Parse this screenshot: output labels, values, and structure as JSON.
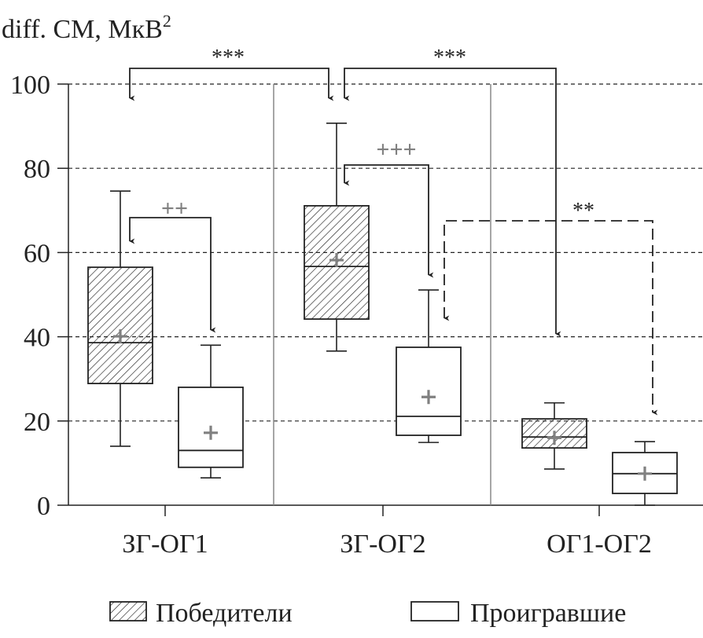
{
  "chart_data": {
    "type": "box",
    "ylabel": "diff. СМ, МкВ",
    "ylabel_sup": "2",
    "ylim": [
      0,
      100
    ],
    "yticks": [
      "0",
      "20",
      "40",
      "60",
      "80",
      "100"
    ],
    "grid": "dashed horizontal at 20,40,60,80,100",
    "categories": [
      "ЗГ-ОГ1",
      "ЗГ-ОГ2",
      "ОГ1-ОГ2"
    ],
    "legend_position": "bottom",
    "series": [
      {
        "name": "Победители",
        "style": "hatched",
        "boxes": [
          {
            "min": 14,
            "q1": 28.9,
            "median": 38.6,
            "q3": 56.5,
            "max": 74.6,
            "mean": 40.1
          },
          {
            "min": 36.6,
            "q1": 44.2,
            "median": 56.7,
            "q3": 71.1,
            "max": 90.7,
            "mean": 58.2
          },
          {
            "min": 8.6,
            "q1": 13.6,
            "median": 16.2,
            "q3": 20.5,
            "max": 24.3,
            "mean": 16
          }
        ]
      },
      {
        "name": "Проигравшие",
        "style": "open",
        "boxes": [
          {
            "min": 6.5,
            "q1": 9,
            "median": 13,
            "q3": 28,
            "max": 38,
            "mean": 17.2
          },
          {
            "min": 14.9,
            "q1": 16.6,
            "median": 21.1,
            "q3": 37.5,
            "max": 51.1,
            "mean": 25.7
          },
          {
            "min": 0,
            "q1": 2.8,
            "median": 7.5,
            "q3": 12.5,
            "max": 15.1,
            "mean": 7.5
          }
        ]
      }
    ],
    "annotations": [
      {
        "label": "***",
        "from": "Победители ЗГ-ОГ1",
        "to": "Победители ЗГ-ОГ2",
        "style": "solid",
        "color": "#222222"
      },
      {
        "label": "***",
        "from": "Победители ЗГ-ОГ2",
        "to": "Победители ОГ1-ОГ2",
        "style": "solid",
        "color": "#222222"
      },
      {
        "label": "+++",
        "from": "Победители ЗГ-ОГ2",
        "to": "Проигравшие ЗГ-ОГ2",
        "style": "solid",
        "color": "#808080"
      },
      {
        "label": "++",
        "from": "Победители ЗГ-ОГ1",
        "to": "Проигравшие ЗГ-ОГ1",
        "style": "solid",
        "color": "#808080"
      },
      {
        "label": "**",
        "from": "Проигравшие ЗГ-ОГ2",
        "to": "Проигравшие ОГ1-ОГ2",
        "style": "dashed",
        "color": "#222222"
      }
    ],
    "mean_marker_color": "#808080"
  }
}
